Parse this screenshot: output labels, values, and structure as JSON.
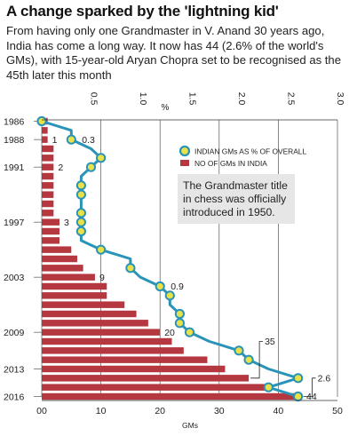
{
  "title": "A change sparked by the 'lightning kid'",
  "subtitle": "From having only one Grandmaster in V. Anand 30 years ago, India has come a long way. It now has 44 (2.6% of the world's GMs), with 15-year-old Aryan Chopra set to be recognised as the 45th later this month",
  "chart_data": {
    "type": "bar",
    "orientation": "horizontal",
    "years": [
      1986,
      1987,
      1988,
      1989,
      1990,
      1991,
      1992,
      1993,
      1994,
      1995,
      1996,
      1997,
      1998,
      1999,
      2000,
      2001,
      2002,
      2003,
      2004,
      2005,
      2006,
      2007,
      2008,
      2009,
      2010,
      2011,
      2012,
      2013,
      2014,
      2015,
      2016
    ],
    "year_tick_labels": [
      "1986",
      "1988",
      "1991",
      "1997",
      "2003",
      "2009",
      "2013",
      "2016"
    ],
    "year_ticks": [
      1986,
      1988,
      1991,
      1997,
      2003,
      2009,
      2013,
      2016
    ],
    "bar_series": {
      "name": "NO OF GMs IN INDIA",
      "color": "#b5373f",
      "values": [
        1,
        1,
        1,
        2,
        2,
        2,
        2,
        2,
        2,
        2,
        2,
        3,
        3,
        3,
        5,
        6,
        7,
        9,
        11,
        11,
        14,
        16,
        18,
        20,
        22,
        24,
        28,
        31,
        35,
        38,
        44
      ]
    },
    "line_series": {
      "name": "INDIAN GMs AS % OF OVERALL",
      "color": "#2a93b8",
      "marker_fill": "#e9e14a",
      "values": [
        0.0,
        0.3,
        0.3,
        0.5,
        0.6,
        0.5,
        0.4,
        0.4,
        0.4,
        0.4,
        0.4,
        0.4,
        0.4,
        0.4,
        0.6,
        0.9,
        0.9,
        1.0,
        1.2,
        1.3,
        1.3,
        1.4,
        1.4,
        1.5,
        1.7,
        2.0,
        2.1,
        2.3,
        2.6,
        2.3,
        2.6
      ]
    },
    "point_annotations": [
      {
        "year": 1988,
        "text": "1",
        "on": "bars"
      },
      {
        "year": 1991,
        "text": "2",
        "on": "bars"
      },
      {
        "year": 1997,
        "text": "3",
        "on": "bars"
      },
      {
        "year": 2003,
        "text": "9",
        "on": "bars"
      },
      {
        "year": 2009,
        "text": "20",
        "on": "bars"
      },
      {
        "year": 2016,
        "text": "44",
        "on": "bars"
      },
      {
        "year": 1988,
        "text": "0.3",
        "on": "line"
      },
      {
        "year": 2004,
        "text": "0.9",
        "on": "line"
      }
    ],
    "callout_annotations": [
      {
        "text": "35",
        "year": 2014,
        "label_year": 2010
      },
      {
        "text": "2.6",
        "year": 2016,
        "label_year": 2014
      }
    ],
    "bottom_axis": {
      "label": "GMs",
      "range": [
        0,
        50
      ],
      "tick_values": [
        0,
        10,
        20,
        30,
        40,
        50
      ],
      "tick_labels": [
        "00",
        "10",
        "20",
        "30",
        "40",
        "50"
      ]
    },
    "top_axis": {
      "label": "%",
      "range": [
        0,
        3
      ],
      "tick_values": [
        0.5,
        1.0,
        1.5,
        2.0,
        2.5,
        3.0
      ],
      "tick_labels": [
        "0.5",
        "1.0",
        "1.5",
        "2.0",
        "2.5",
        "3.0"
      ]
    },
    "note": "The Grandmaster title in chess was officially introduced in 1950.",
    "legend_position": "top-right",
    "grid": true
  }
}
